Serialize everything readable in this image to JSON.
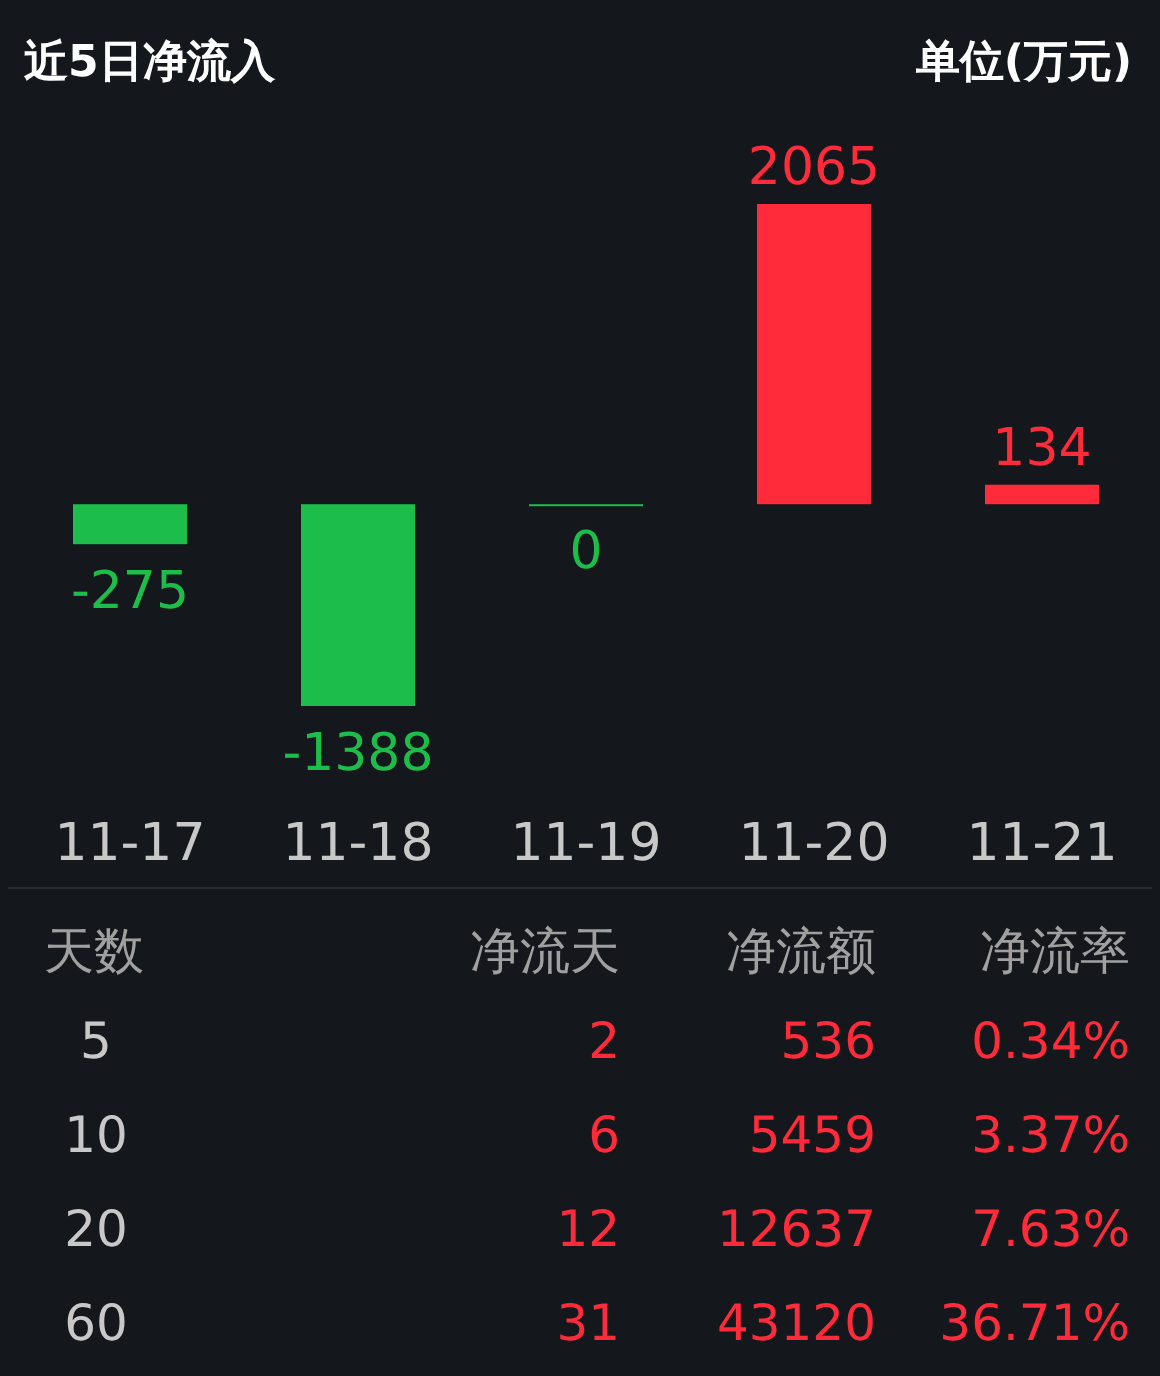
{
  "chart_data": [
    {
      "type": "bar",
      "title": "近5日净流入",
      "subtitle": "单位(万元)",
      "categories": [
        "11-17",
        "11-18",
        "11-19",
        "11-20",
        "11-21"
      ],
      "values": [
        -275,
        -1388,
        0,
        2065,
        134
      ],
      "colors": [
        "#1dbd4c",
        "#1dbd4c",
        "#1dbd4c",
        "#ff2a3a",
        "#ff2a3a"
      ],
      "data_labels": true
    },
    {
      "type": "other",
      "categories": [
        "天数",
        "净流天",
        "净流额",
        "净流率"
      ],
      "cell_labels": [
        [
          "5",
          "2",
          "536",
          "0.34%"
        ],
        [
          "10",
          "6",
          "5459",
          "3.37%"
        ],
        [
          "20",
          "12",
          "12637",
          "7.63%"
        ],
        [
          "60",
          "31",
          "43120",
          "36.71%"
        ]
      ],
      "colors": [
        "#c8c8c8",
        "#ff2a3a",
        "#ff2a3a",
        "#ff2a3a"
      ]
    }
  ]
}
